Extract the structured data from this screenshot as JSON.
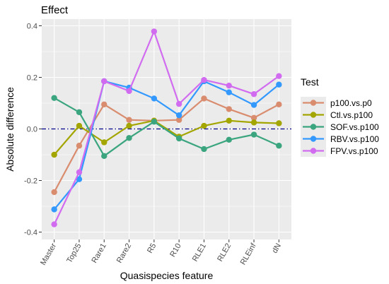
{
  "chart_data": {
    "type": "line",
    "title": "Effect",
    "xlabel": "Quasispecies feature",
    "ylabel": "Absolute difference",
    "categories": [
      "Master",
      "Top25",
      "Rare1",
      "Rare2",
      "R5",
      "R10",
      "RLE1",
      "RLE2",
      "RLEinf",
      "dN"
    ],
    "ylim": [
      -0.4,
      0.4
    ],
    "yticks": [
      -0.4,
      -0.2,
      0.0,
      0.2,
      0.4
    ],
    "ytick_labels": [
      "-0.4",
      "-0.2",
      "0.0",
      "0.2",
      "0.4"
    ],
    "grid": true,
    "reference_line": {
      "y": 0.0,
      "style": "dashed",
      "color": "#00008b"
    },
    "legend": {
      "title": "Test",
      "position": "right"
    },
    "series": [
      {
        "name": "p100.vs.p0",
        "color": "#D98C6E",
        "values": [
          -0.245,
          -0.065,
          0.095,
          0.035,
          0.032,
          0.035,
          0.118,
          0.077,
          0.043,
          0.095
        ]
      },
      {
        "name": "Ctl.vs.p100",
        "color": "#A3A500",
        "values": [
          -0.1,
          0.012,
          -0.052,
          0.012,
          0.032,
          -0.03,
          0.012,
          0.032,
          0.025,
          0.022
        ]
      },
      {
        "name": "SOF.vs.p100",
        "color": "#3AA57E",
        "values": [
          0.12,
          0.065,
          -0.105,
          -0.035,
          0.028,
          -0.037,
          -0.078,
          -0.042,
          -0.022,
          -0.065
        ]
      },
      {
        "name": "RBV.vs.p100",
        "color": "#3399FF",
        "values": [
          -0.312,
          -0.195,
          0.185,
          0.16,
          0.118,
          0.053,
          0.185,
          0.142,
          0.093,
          0.172
        ]
      },
      {
        "name": "FPV.vs.p100",
        "color": "#D16CF0",
        "values": [
          -0.37,
          -0.168,
          0.185,
          0.147,
          0.378,
          0.097,
          0.19,
          0.168,
          0.135,
          0.205
        ]
      }
    ]
  }
}
